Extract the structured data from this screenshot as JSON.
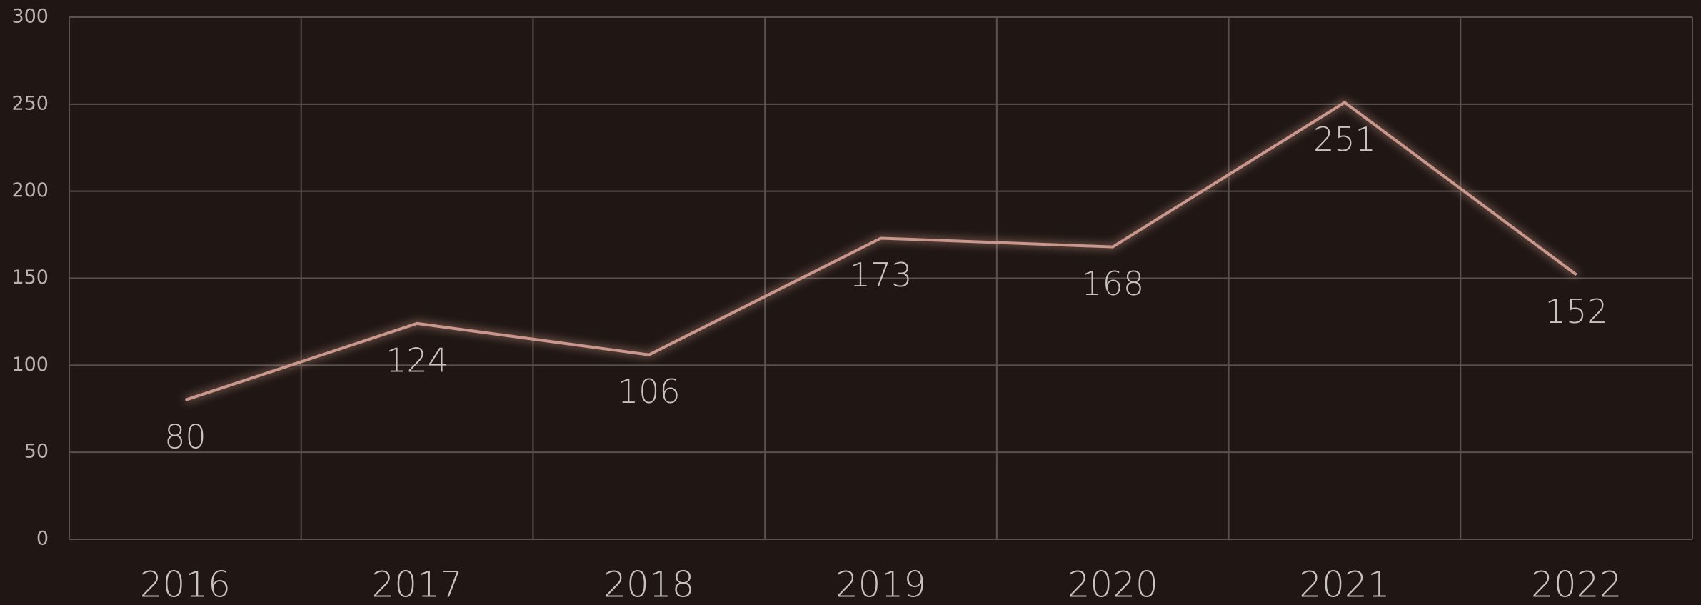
{
  "chart_data": {
    "type": "line",
    "categories": [
      "2016",
      "2017",
      "2018",
      "2019",
      "2020",
      "2021",
      "2022"
    ],
    "values": [
      80,
      124,
      106,
      173,
      168,
      251,
      152
    ],
    "color": "#c9978c",
    "ylim": [
      0,
      300
    ],
    "yticks": [
      0,
      50,
      100,
      150,
      200,
      250,
      300
    ],
    "grid": true
  }
}
